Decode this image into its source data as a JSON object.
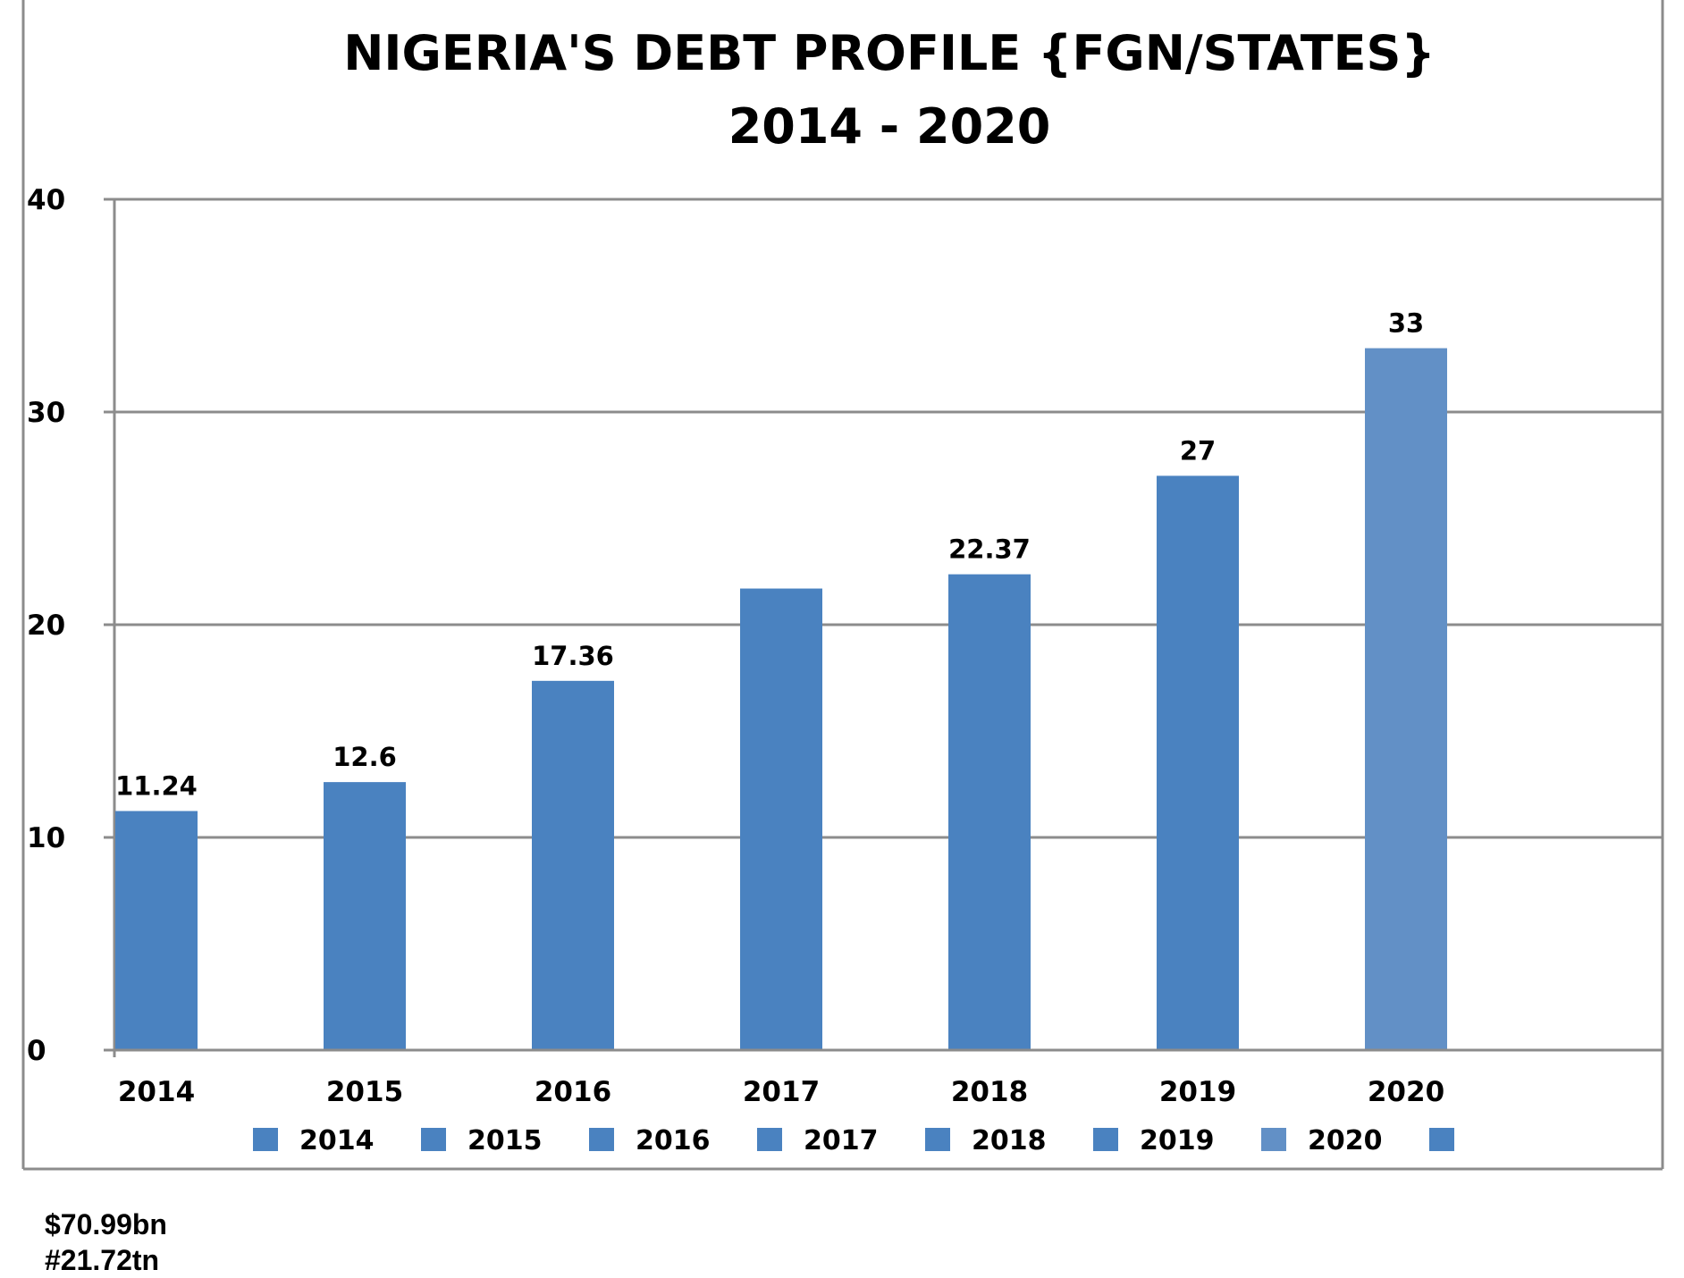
{
  "chart_data": {
    "type": "bar",
    "title": "NIGERIA'S DEBT PROFILE {FGN/STATES}",
    "subtitle": "2014 - 2020",
    "categories": [
      "2014",
      "2015",
      "2016",
      "2017",
      "2018",
      "2019",
      "2020"
    ],
    "values": [
      11.24,
      12.6,
      17.36,
      21.7,
      22.37,
      27,
      33
    ],
    "data_labels": [
      "11.24",
      "12.6",
      "17.36",
      "",
      "22.37",
      "27",
      "33"
    ],
    "ylim": [
      0,
      40
    ],
    "yticks": [
      "0",
      "10",
      "20",
      "30",
      "40"
    ],
    "grid": true,
    "legend_position": "bottom",
    "legend": [
      "2014",
      "2015",
      "2016",
      "2017",
      "2018",
      "2019",
      "2020",
      ""
    ],
    "colors": {
      "bar": "#4a82c0",
      "bar_last": "#6290c6",
      "grid": "#8c8c8c",
      "axis": "#8c8c8c"
    }
  },
  "notes": [
    "$70.99bn",
    "#21.72tn"
  ]
}
